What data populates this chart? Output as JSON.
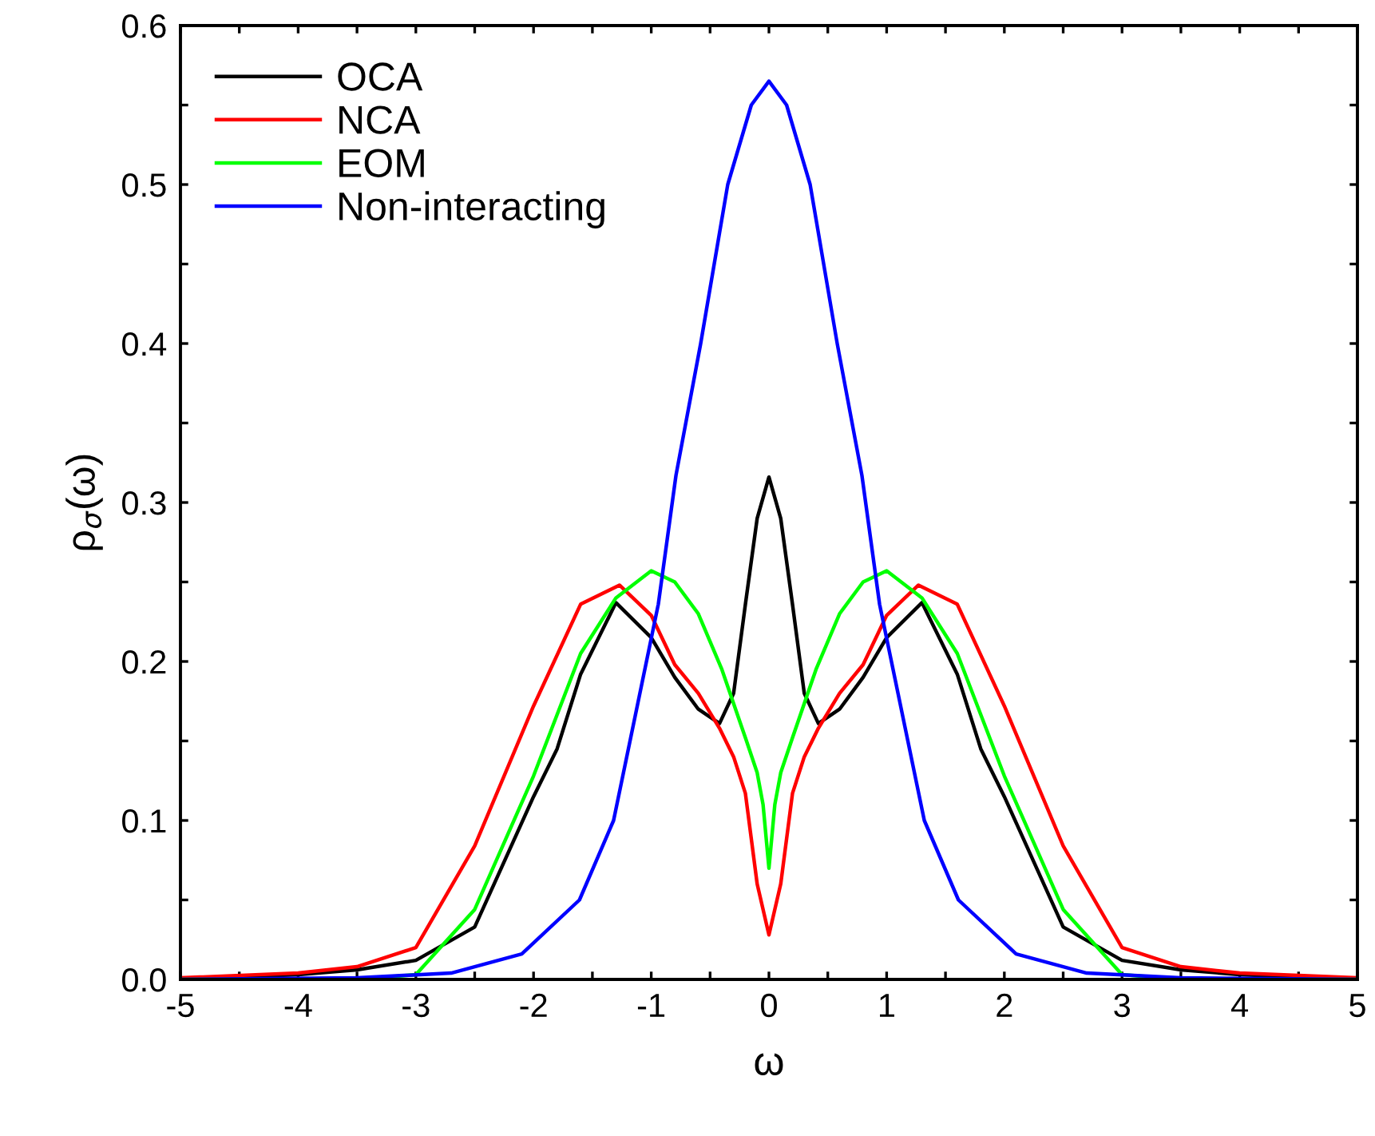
{
  "chart_data": {
    "type": "line",
    "xlabel": "ω",
    "ylabel": "ρ$_{σ}$(ω)",
    "xlim": [
      -5,
      5
    ],
    "ylim": [
      0,
      0.6
    ],
    "xticks": [
      -5,
      {
        "value": -4.5,
        "label": null
      },
      -4,
      {
        "value": -3.5,
        "label": null
      },
      -3,
      {
        "value": -2.5,
        "label": null
      },
      -2,
      {
        "value": -1.5,
        "label": null
      },
      -1,
      {
        "value": -0.5,
        "label": null
      },
      0,
      {
        "value": 0.5,
        "label": null
      },
      1,
      {
        "value": 1.5,
        "label": null
      },
      2,
      {
        "value": 2.5,
        "label": null
      },
      3,
      {
        "value": 3.5,
        "label": null
      },
      4,
      {
        "value": 4.5,
        "label": null
      },
      5
    ],
    "yticks": [
      {
        "value": 0,
        "label": "0.0"
      },
      {
        "value": 0.05,
        "label": null
      },
      0.1,
      {
        "value": 0.15,
        "label": null
      },
      0.2,
      {
        "value": 0.25,
        "label": null
      },
      0.3,
      {
        "value": 0.35,
        "label": null
      },
      0.4,
      {
        "value": 0.45,
        "label": null
      },
      0.5,
      {
        "value": 0.55,
        "label": null
      },
      0.6
    ],
    "legend": "top left",
    "grid": false,
    "marker": "none",
    "line_style": "solid",
    "series": [
      {
        "name": "OCA",
        "color": "#000000",
        "x": [
          -5,
          -4,
          -3.5,
          -3,
          -2.5,
          -2,
          -1.8,
          -1.6,
          -1.3,
          -1,
          -0.8,
          -0.6,
          -0.42,
          -0.3,
          -0.2,
          -0.1,
          0,
          0.1,
          0.2,
          0.3,
          0.42,
          0.6,
          0.8,
          1,
          1.3,
          1.6,
          1.8,
          2,
          2.5,
          3,
          3.5,
          4,
          5
        ],
        "values": [
          0,
          0.003,
          0.006,
          0.012,
          0.033,
          0.115,
          0.145,
          0.192,
          0.237,
          0.215,
          0.19,
          0.17,
          0.161,
          0.18,
          0.236,
          0.29,
          0.316,
          0.29,
          0.236,
          0.18,
          0.161,
          0.17,
          0.19,
          0.215,
          0.237,
          0.192,
          0.145,
          0.115,
          0.033,
          0.012,
          0.006,
          0.003,
          0
        ]
      },
      {
        "name": "NCA",
        "color": "#ff0000",
        "x": [
          -5,
          -4,
          -3.5,
          -3,
          -2.5,
          -2,
          -1.6,
          -1.27,
          -1,
          -0.8,
          -0.6,
          -0.42,
          -0.3,
          -0.2,
          -0.1,
          0,
          0.1,
          0.2,
          0.3,
          0.42,
          0.6,
          0.8,
          1,
          1.27,
          1.6,
          2,
          2.5,
          3,
          3.5,
          4,
          5
        ],
        "values": [
          0.001,
          0.004,
          0.008,
          0.02,
          0.084,
          0.172,
          0.236,
          0.248,
          0.229,
          0.198,
          0.18,
          0.158,
          0.14,
          0.117,
          0.06,
          0.028,
          0.06,
          0.117,
          0.14,
          0.158,
          0.18,
          0.198,
          0.229,
          0.248,
          0.236,
          0.172,
          0.084,
          0.02,
          0.008,
          0.004,
          0.001
        ]
      },
      {
        "name": "EOM",
        "color": "#00ff00",
        "x": [
          -5,
          -3.5,
          -3,
          -2.5,
          -2,
          -1.6,
          -1.3,
          -1,
          -0.8,
          -0.6,
          -0.4,
          -0.2,
          -0.1,
          -0.05,
          0,
          0.05,
          0.1,
          0.2,
          0.4,
          0.6,
          0.8,
          1,
          1.3,
          1.6,
          2,
          2.5,
          3,
          3.5,
          5
        ],
        "values": [
          0,
          0,
          0.003,
          0.044,
          0.128,
          0.205,
          0.24,
          0.257,
          0.25,
          0.23,
          0.195,
          0.152,
          0.13,
          0.11,
          0.07,
          0.11,
          0.13,
          0.152,
          0.195,
          0.23,
          0.25,
          0.257,
          0.24,
          0.205,
          0.128,
          0.044,
          0.003,
          0,
          0
        ]
      },
      {
        "name": "Non-interacting",
        "color": "#0000ff",
        "x": [
          -5,
          -3.5,
          -2.7,
          -2.1,
          -1.61,
          -1.32,
          -0.94,
          -0.79,
          -0.58,
          -0.35,
          -0.15,
          0,
          0.15,
          0.35,
          0.58,
          0.79,
          0.94,
          1.32,
          1.61,
          2.1,
          2.7,
          3.5,
          5
        ],
        "values": [
          0,
          0.001,
          0.004,
          0.016,
          0.05,
          0.1,
          0.236,
          0.317,
          0.4,
          0.5,
          0.55,
          0.565,
          0.55,
          0.5,
          0.4,
          0.317,
          0.236,
          0.1,
          0.05,
          0.016,
          0.004,
          0.001,
          0
        ]
      }
    ]
  }
}
